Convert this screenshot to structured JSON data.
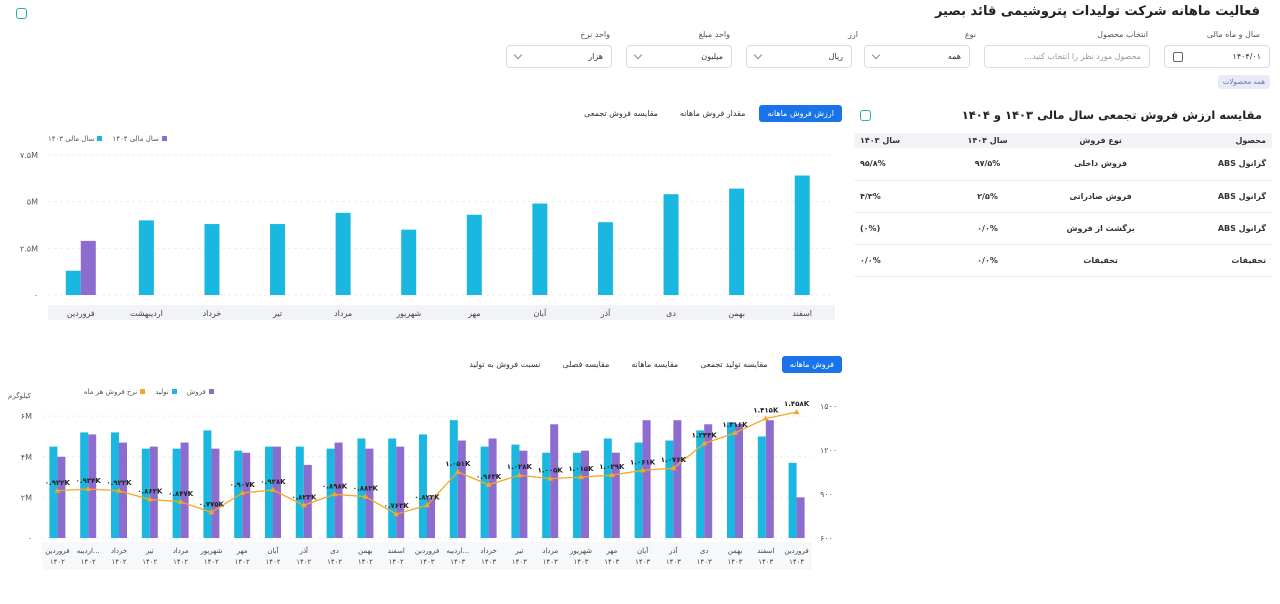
{
  "page_title": "فعالیت ماهانه شرکت تولیدات پتروشیمی قائد بصیر",
  "filters": {
    "year_label": "سال و ماه مالی",
    "year_value": "۱۴۰۴/۰۱",
    "product_label": "انتخاب محصول",
    "product_placeholder": "محصول مورد نظر را انتخاب کنید...",
    "type_label": "نوع",
    "type_value": "همه",
    "currency_label": "ارز",
    "currency_value": "ریال",
    "amount_unit_label": "واحد مبلغ",
    "amount_unit_value": "میلیون",
    "rate_unit_label": "واحد نرخ",
    "rate_unit_value": "هزار",
    "all_products_tag": "همه محصولات"
  },
  "section1": {
    "title": "مقایسه ارزش فروش تجمعی سال مالی ۱۴۰۳ و ۱۴۰۴",
    "columns": [
      "محصول",
      "نوع فروش",
      "سال ۱۴۰۴",
      "سال ۱۴۰۳"
    ],
    "rows": [
      [
        "گرانول ABS",
        "فروش داخلی",
        "۹۷/۵%",
        "۹۵/۸%"
      ],
      [
        "گرانول ABS",
        "فروش صادراتی",
        "۲/۵%",
        "۴/۳%"
      ],
      [
        "گرانول ABS",
        "برگشت از فروش",
        "۰/۰%",
        "(۰%)"
      ],
      [
        "تخفیفات",
        "تخفیفات",
        "۰/۰%",
        "۰/۰%"
      ]
    ]
  },
  "tabs1": [
    "ارزش فروش ماهانه",
    "مقدار فروش ماهانه",
    "مقایسه فروش تجمعی"
  ],
  "tabs2": [
    "فروش ماهانه",
    "مقایسه تولید تجمعی",
    "مقایسه ماهانه",
    "مقایسه فصلی",
    "نسبت فروش به تولید"
  ],
  "chart_data": [
    {
      "type": "bar",
      "legend": [
        "سال مالی ۱۴۰۴",
        "سال مالی ۱۴۰۳"
      ],
      "legend_placement": "top-left",
      "categories": [
        "اسفند",
        "بهمن",
        "دی",
        "آذر",
        "آبان",
        "مهر",
        "شهریور",
        "مرداد",
        "تیر",
        "خرداد",
        "اردیبهشت",
        "فروردین"
      ],
      "series": [
        {
          "name": "سال مالی ۱۴۰۳",
          "color": "#1ab7e0",
          "values": [
            6.4,
            5.7,
            5.4,
            3.9,
            4.9,
            4.3,
            3.5,
            4.4,
            3.8,
            3.8,
            4.0,
            1.3
          ]
        },
        {
          "name": "سال مالی ۱۴۰۴",
          "color": "#8c6ccf",
          "values": [
            null,
            null,
            null,
            null,
            null,
            null,
            null,
            null,
            null,
            null,
            null,
            2.9
          ]
        }
      ],
      "yticks": [
        "۷.۵M",
        "۵M",
        "۲.۵M",
        "۰"
      ],
      "ylim": [
        0,
        7.5
      ]
    },
    {
      "type": "bar-line",
      "legend": [
        "فروش",
        "تولید",
        "نرخ فروش هر ماه"
      ],
      "y_left_label": "کیلوگرم",
      "y_left_ticks": [
        "۶M",
        "۴M",
        "۲M",
        "۰"
      ],
      "y_right_ticks": [
        "۱۵۰۰",
        "۱۲۰۰",
        "۹۰۰",
        "۶۰۰"
      ],
      "ylim_left": [
        0,
        6.5
      ],
      "ylim_right": [
        600,
        1500
      ],
      "categories": [
        [
          "فروردین",
          "۱۴۰۴"
        ],
        [
          "اسفند",
          "۱۴۰۳"
        ],
        [
          "بهمن",
          "۱۴۰۳"
        ],
        [
          "دی",
          "۱۴۰۳"
        ],
        [
          "آذر",
          "۱۴۰۳"
        ],
        [
          "آبان",
          "۱۴۰۳"
        ],
        [
          "مهر",
          "۱۴۰۳"
        ],
        [
          "شهریور",
          "۱۴۰۳"
        ],
        [
          "مرداد",
          "۱۴۰۳"
        ],
        [
          "تیر",
          "۱۴۰۳"
        ],
        [
          "خرداد",
          "۱۴۰۳"
        ],
        [
          "اردیبه...",
          "۱۴۰۳"
        ],
        [
          "فروردین",
          "۱۴۰۳"
        ],
        [
          "اسفند",
          "۱۴۰۲"
        ],
        [
          "بهمن",
          "۱۴۰۲"
        ],
        [
          "دی",
          "۱۴۰۲"
        ],
        [
          "آذر",
          "۱۴۰۲"
        ],
        [
          "آبان",
          "۱۴۰۲"
        ],
        [
          "مهر",
          "۱۴۰۲"
        ],
        [
          "شهریور",
          "۱۴۰۲"
        ],
        [
          "مرداد",
          "۱۴۰۲"
        ],
        [
          "تیر",
          "۱۴۰۲"
        ],
        [
          "خرداد",
          "۱۴۰۲"
        ],
        [
          "اردیبه...",
          "۱۴۰۲"
        ],
        [
          "فروردین",
          "۱۴۰۲"
        ]
      ],
      "series": [
        {
          "name": "تولید",
          "color": "#1ab7e0",
          "values": [
            3.7,
            5.0,
            5.7,
            5.3,
            4.8,
            4.7,
            4.9,
            4.2,
            4.2,
            4.6,
            4.5,
            5.8,
            5.1,
            4.9,
            4.9,
            4.4,
            4.5,
            4.5,
            4.3,
            5.3,
            4.4,
            4.4,
            5.2,
            5.2,
            4.5
          ]
        },
        {
          "name": "فروش",
          "color": "#8c6ccf",
          "values": [
            2.0,
            5.8,
            5.6,
            5.6,
            5.8,
            5.8,
            4.2,
            4.3,
            5.6,
            4.3,
            4.9,
            4.8,
            2.0,
            4.5,
            4.4,
            4.7,
            3.6,
            4.5,
            4.2,
            4.4,
            4.7,
            4.5,
            4.7,
            5.1,
            4.0
          ]
        },
        {
          "name": "نرخ فروش هر ماه",
          "color": "#f5a623",
          "values": [
            1458,
            1415,
            1316,
            1244,
            1076,
            1061,
            1029,
            1015,
            1005,
            1028,
            963,
            1051,
            823,
            763,
            882,
            898,
            823,
            928,
            907,
            775,
            847,
            863,
            922,
            934,
            922
          ],
          "labels": [
            "۱.۴۵۸K",
            "۱.۴۱۵K",
            "۱.۳۱۶K",
            "۱.۲۴۴K",
            "۱.۰۷۶K",
            "۱.۰۶۱K",
            "۱.۰۲۹K",
            "۱.۰۱۵K",
            "۱.۰۰۵K",
            "۱.۰۲۸K",
            "۰.۹۶۳K",
            "۱.۰۵۱K",
            "۰.۸۲۳K",
            "۰.۷۶۳K",
            "۰.۸۸۲K",
            "۰.۸۹۸K",
            "۰.۸۲۳K",
            "۰.۹۲۸K",
            "۰.۹۰۷K",
            "۰.۷۷۵K",
            "۰.۸۴۷K",
            "۰.۸۶۳K",
            "۰.۹۲۲K",
            "۰.۹۳۴K",
            "۰.۹۲۲K"
          ]
        }
      ]
    }
  ]
}
